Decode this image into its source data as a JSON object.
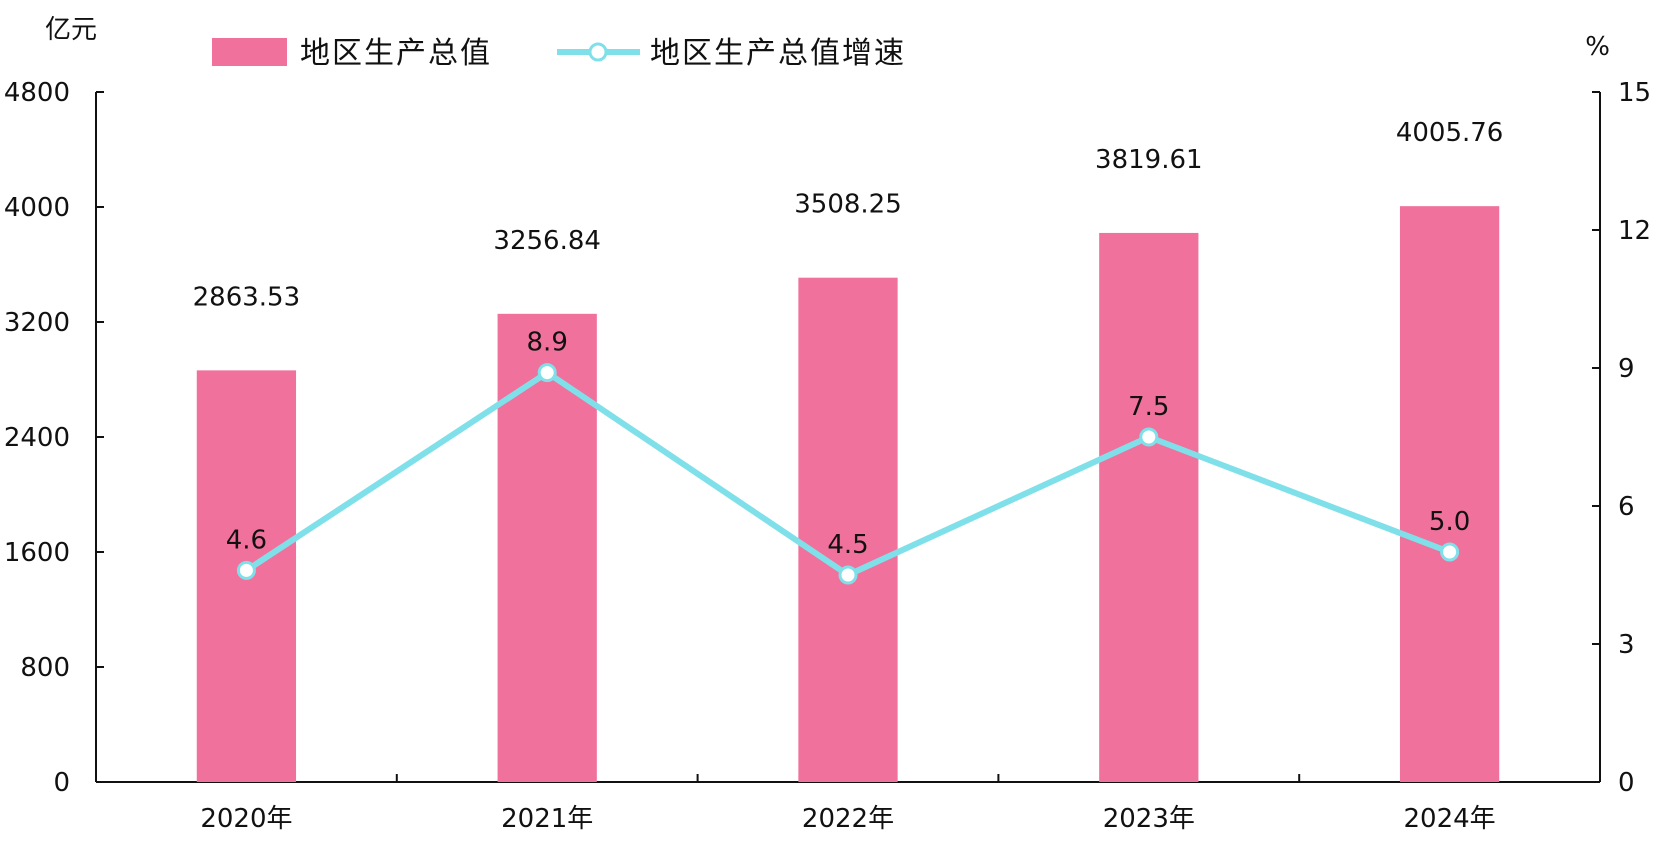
{
  "chart_data": {
    "type": "bar",
    "categories": [
      "2020年",
      "2021年",
      "2022年",
      "2023年",
      "2024年"
    ],
    "series": [
      {
        "name": "地区生产总值",
        "type": "bar",
        "axis": "left",
        "color": "#F0719B",
        "values": [
          2863.53,
          3256.84,
          3508.25,
          3819.61,
          4005.76
        ],
        "labels": [
          "2863.53",
          "3256.84",
          "3508.25",
          "3819.61",
          "4005.76"
        ]
      },
      {
        "name": "地区生产总值增速",
        "type": "line",
        "axis": "right",
        "color": "#7FE0EA",
        "values": [
          4.6,
          8.9,
          4.5,
          7.5,
          5.0
        ],
        "labels": [
          "4.6",
          "8.9",
          "4.5",
          "7.5",
          "5.0"
        ]
      }
    ],
    "left_axis": {
      "unit": "亿元",
      "ylim": [
        0,
        4800
      ],
      "ticks": [
        0,
        800,
        1600,
        2400,
        3200,
        4000,
        4800
      ],
      "tick_labels": [
        "0",
        "800",
        "1600",
        "2400",
        "3200",
        "4000",
        "4800"
      ]
    },
    "right_axis": {
      "unit": "%",
      "ylim": [
        0,
        15
      ],
      "ticks": [
        0,
        3,
        6,
        9,
        12,
        15
      ],
      "tick_labels": [
        "0",
        "3",
        "6",
        "9",
        "12",
        "15"
      ]
    },
    "legend": {
      "placement": "top",
      "items": [
        "地区生产总值",
        "地区生产总值增速"
      ]
    },
    "grid": false
  }
}
